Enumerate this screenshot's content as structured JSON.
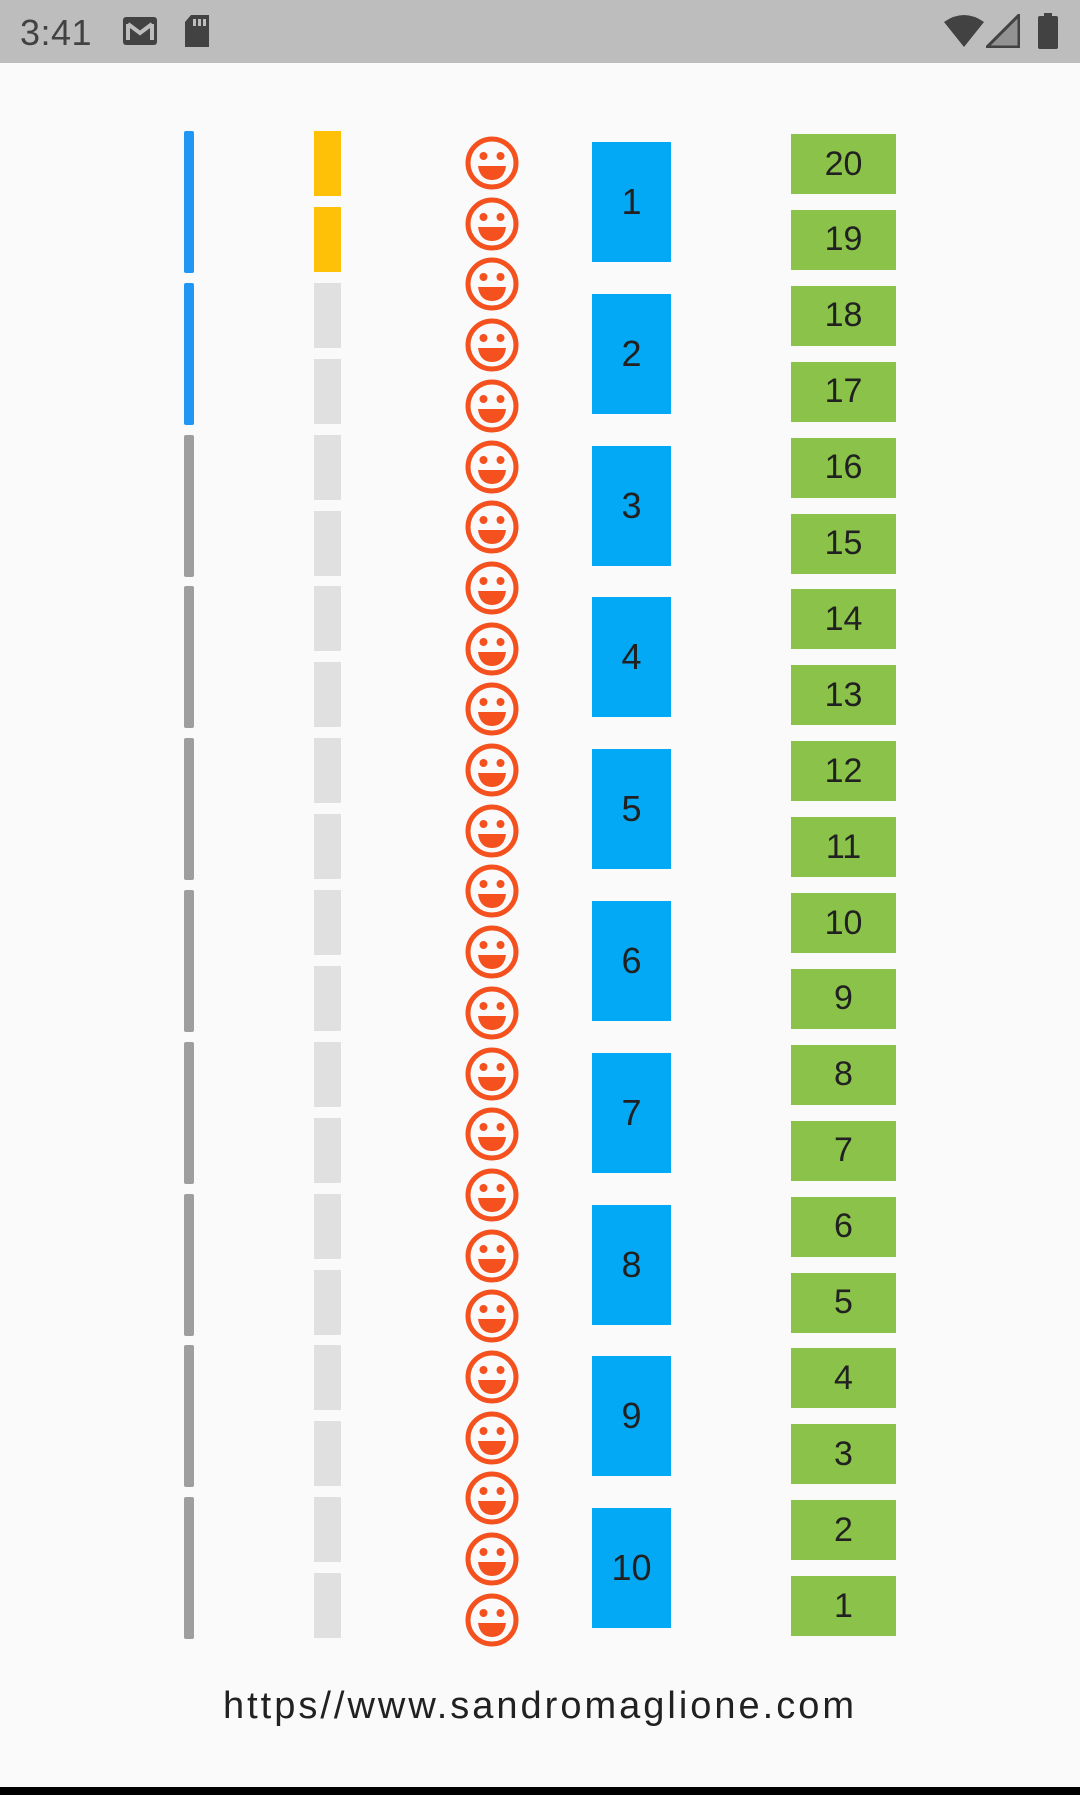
{
  "status_bar": {
    "time": "3:41",
    "icons": [
      "gmail-icon",
      "sd-card-icon",
      "wifi-icon",
      "signal-icon",
      "battery-icon"
    ]
  },
  "colors": {
    "status_bar_bg": "#bdbdbd",
    "progress_active": "#2196f3",
    "progress_inactive": "#9e9e9e",
    "step_active": "#ffc107",
    "step_inactive": "#e0e0e0",
    "smiley": "#f4511e",
    "blue_box": "#03a9f4",
    "green_box": "#8bc34a"
  },
  "progress_segments": {
    "total": 10,
    "active": 2
  },
  "step_segments": {
    "total": 20,
    "active": 2
  },
  "smiley_count": 25,
  "blue_boxes": [
    "1",
    "2",
    "3",
    "4",
    "5",
    "6",
    "7",
    "8",
    "9",
    "10"
  ],
  "green_boxes": [
    "20",
    "19",
    "18",
    "17",
    "16",
    "15",
    "14",
    "13",
    "12",
    "11",
    "10",
    "9",
    "8",
    "7",
    "6",
    "5",
    "4",
    "3",
    "2",
    "1"
  ],
  "footer": {
    "url": "https//www.sandromaglione.com"
  }
}
